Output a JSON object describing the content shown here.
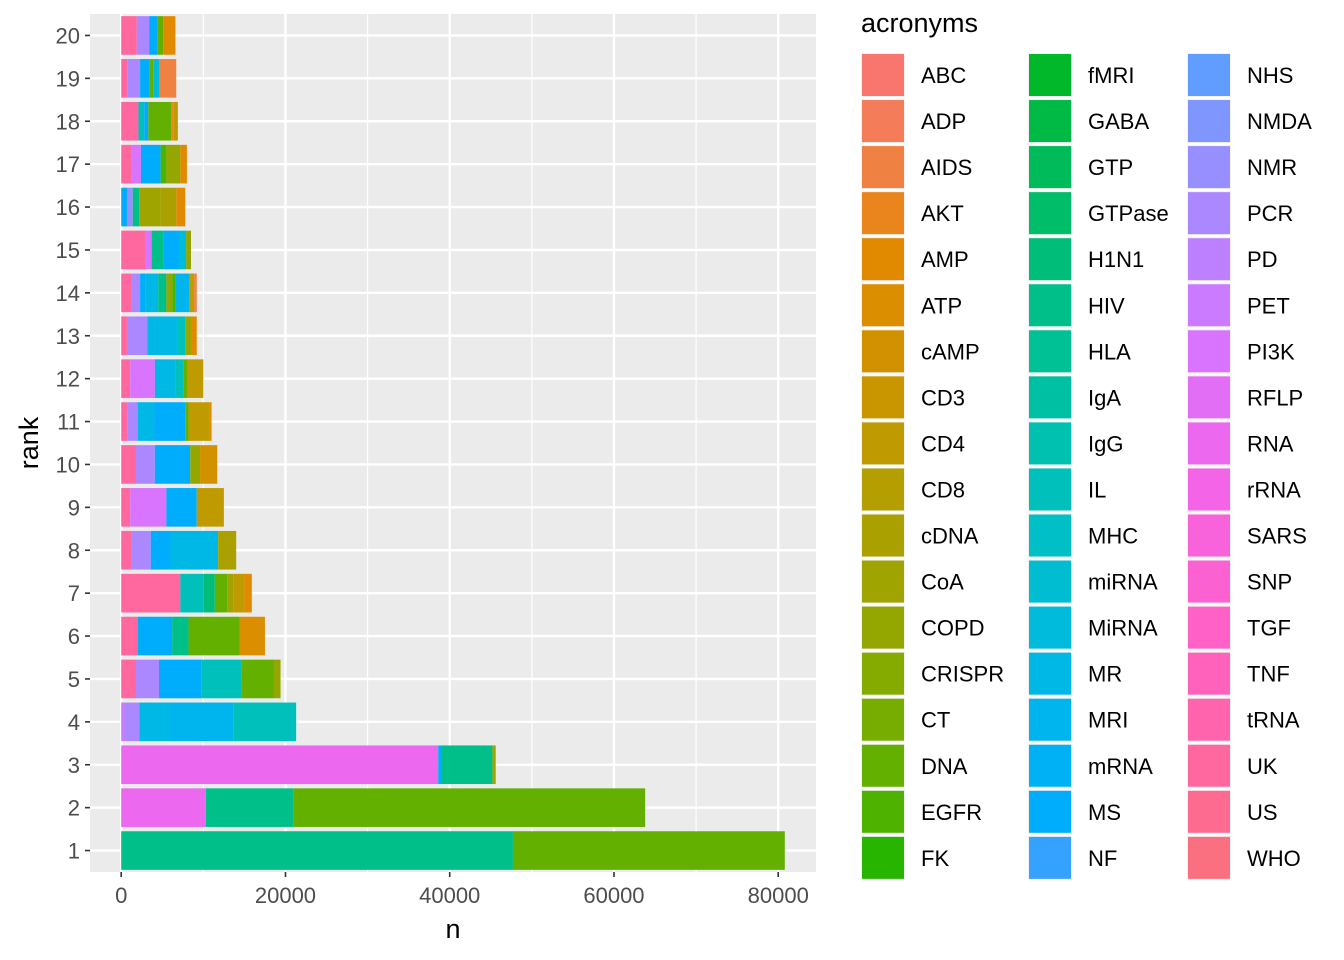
{
  "chart_data": {
    "type": "bar",
    "orientation": "horizontal",
    "stacked": true,
    "title": "",
    "xlabel": "n",
    "ylabel": "rank",
    "xlim": [
      -3800,
      84600
    ],
    "xticks": [
      0,
      20000,
      40000,
      60000,
      80000
    ],
    "xtick_labels": [
      "0",
      "20000",
      "40000",
      "60000",
      "80000"
    ],
    "categories": [
      "1",
      "2",
      "3",
      "4",
      "5",
      "6",
      "7",
      "8",
      "9",
      "10",
      "11",
      "12",
      "13",
      "14",
      "15",
      "16",
      "17",
      "18",
      "19",
      "20"
    ],
    "grid": true,
    "legend": {
      "title": "acronyms",
      "position": "right",
      "columns": 3,
      "items": [
        {
          "name": "ABC",
          "color": "#F8766D"
        },
        {
          "name": "ADP",
          "color": "#F47C59"
        },
        {
          "name": "AIDS",
          "color": "#EF8142"
        },
        {
          "name": "AKT",
          "color": "#E9851C"
        },
        {
          "name": "AMP",
          "color": "#E18A00"
        },
        {
          "name": "ATP",
          "color": "#DA8E00"
        },
        {
          "name": "cAMP",
          "color": "#D29200"
        },
        {
          "name": "CD3",
          "color": "#C99600"
        },
        {
          "name": "CD4",
          "color": "#BF9A00"
        },
        {
          "name": "CD8",
          "color": "#B59E00"
        },
        {
          "name": "cDNA",
          "color": "#AAA100"
        },
        {
          "name": "CoA",
          "color": "#9FA400"
        },
        {
          "name": "COPD",
          "color": "#93A700"
        },
        {
          "name": "CRISPR",
          "color": "#85AA00"
        },
        {
          "name": "CT",
          "color": "#76AD00"
        },
        {
          "name": "DNA",
          "color": "#64B000"
        },
        {
          "name": "EGFR",
          "color": "#4DB300"
        },
        {
          "name": "FK",
          "color": "#27B500"
        },
        {
          "name": "fMRI",
          "color": "#00B82A"
        },
        {
          "name": "GABA",
          "color": "#00BA45"
        },
        {
          "name": "GTP",
          "color": "#00BB59"
        },
        {
          "name": "GTPase",
          "color": "#00BD6A"
        },
        {
          "name": "H1N1",
          "color": "#00BE7A"
        },
        {
          "name": "HIV",
          "color": "#00BF88"
        },
        {
          "name": "HLA",
          "color": "#00C096"
        },
        {
          "name": "IgA",
          "color": "#00C0A3"
        },
        {
          "name": "IgG",
          "color": "#00C0AF"
        },
        {
          "name": "IL",
          "color": "#00C0BB"
        },
        {
          "name": "MHC",
          "color": "#00BFC6"
        },
        {
          "name": "miRNA",
          "color": "#00BDD1"
        },
        {
          "name": "MiRNA",
          "color": "#00BBDB"
        },
        {
          "name": "MR",
          "color": "#00B8E5"
        },
        {
          "name": "MRI",
          "color": "#00B5EE"
        },
        {
          "name": "mRNA",
          "color": "#00B1F6"
        },
        {
          "name": "MS",
          "color": "#00ACFC"
        },
        {
          "name": "NF",
          "color": "#35A2FF"
        },
        {
          "name": "NHS",
          "color": "#619CFF"
        },
        {
          "name": "NMDA",
          "color": "#7F96FF"
        },
        {
          "name": "NMR",
          "color": "#978FFF"
        },
        {
          "name": "PCR",
          "color": "#AB88FF"
        },
        {
          "name": "PD",
          "color": "#BD81FF"
        },
        {
          "name": "PET",
          "color": "#CB7BFF"
        },
        {
          "name": "PI3K",
          "color": "#D874FD"
        },
        {
          "name": "RFLP",
          "color": "#E36EF6"
        },
        {
          "name": "RNA",
          "color": "#EC69EF"
        },
        {
          "name": "rRNA",
          "color": "#F365E6"
        },
        {
          "name": "SARS",
          "color": "#F863DC"
        },
        {
          "name": "SNP",
          "color": "#FC61D2"
        },
        {
          "name": "TGF",
          "color": "#FF61C6"
        },
        {
          "name": "TNF",
          "color": "#FF62BA"
        },
        {
          "name": "tRNA",
          "color": "#FF64AD"
        },
        {
          "name": "UK",
          "color": "#FF679F"
        },
        {
          "name": "US",
          "color": "#FE6B90"
        },
        {
          "name": "WHO",
          "color": "#FB7080"
        }
      ]
    },
    "bars": [
      {
        "rank": "1",
        "segments": [
          [
            "HIV",
            47700
          ],
          [
            "DNA",
            33100
          ]
        ]
      },
      {
        "rank": "2",
        "segments": [
          [
            "RNA",
            10300
          ],
          [
            "HIV",
            10700
          ],
          [
            "DNA",
            42800
          ]
        ]
      },
      {
        "rank": "3",
        "segments": [
          [
            "RNA",
            38600
          ],
          [
            "MS",
            400
          ],
          [
            "HIV",
            6200
          ],
          [
            "CoA",
            400
          ]
        ]
      },
      {
        "rank": "4",
        "segments": [
          [
            "PET",
            400
          ],
          [
            "PCR",
            1800
          ],
          [
            "MR",
            3800
          ],
          [
            "MRI",
            7700
          ],
          [
            "IL",
            7600
          ]
        ]
      },
      {
        "rank": "5",
        "segments": [
          [
            "UK",
            1800
          ],
          [
            "PCR",
            2800
          ],
          [
            "MS",
            5200
          ],
          [
            "IL",
            4800
          ],
          [
            "DNA",
            4000
          ],
          [
            "COPD",
            800
          ]
        ]
      },
      {
        "rank": "6",
        "segments": [
          [
            "UK",
            2000
          ],
          [
            "MS",
            4200
          ],
          [
            "HIV",
            2000
          ],
          [
            "DNA",
            6200
          ],
          [
            "ATP",
            3100
          ]
        ]
      },
      {
        "rank": "7",
        "segments": [
          [
            "UK",
            7200
          ],
          [
            "IL",
            2800
          ],
          [
            "H1N1",
            1400
          ],
          [
            "DNA",
            1500
          ],
          [
            "CoA",
            800
          ],
          [
            "CD4",
            1300
          ],
          [
            "AMP",
            900
          ]
        ]
      },
      {
        "rank": "8",
        "segments": [
          [
            "UK",
            1200
          ],
          [
            "PCR",
            2400
          ],
          [
            "MS",
            2400
          ],
          [
            "MR",
            5800
          ],
          [
            "cDNA",
            2200
          ]
        ]
      },
      {
        "rank": "9",
        "segments": [
          [
            "UK",
            1100
          ],
          [
            "PI3K",
            4400
          ],
          [
            "MS",
            3700
          ],
          [
            "CD4",
            3300
          ]
        ]
      },
      {
        "rank": "10",
        "segments": [
          [
            "UK",
            1800
          ],
          [
            "PCR",
            2300
          ],
          [
            "MS",
            4300
          ],
          [
            "COPD",
            1200
          ],
          [
            "cAMP",
            2100
          ]
        ]
      },
      {
        "rank": "11",
        "segments": [
          [
            "UK",
            800
          ],
          [
            "PCR",
            1200
          ],
          [
            "MR",
            2000
          ],
          [
            "MS",
            3800
          ],
          [
            "DNA",
            400
          ],
          [
            "CD4",
            2500
          ],
          [
            "AMP",
            300
          ]
        ]
      },
      {
        "rank": "12",
        "segments": [
          [
            "UK",
            1100
          ],
          [
            "PI3K",
            3000
          ],
          [
            "MR",
            2500
          ],
          [
            "IL",
            1000
          ],
          [
            "DNA",
            500
          ],
          [
            "CD4",
            1900
          ]
        ]
      },
      {
        "rank": "13",
        "segments": [
          [
            "UK",
            700
          ],
          [
            "PCR",
            2500
          ],
          [
            "MR",
            3600
          ],
          [
            "IL",
            1000
          ],
          [
            "CoA",
            700
          ],
          [
            "AMP",
            700
          ]
        ]
      },
      {
        "rank": "14",
        "segments": [
          [
            "UK",
            1300
          ],
          [
            "PCR",
            1000
          ],
          [
            "MS",
            700
          ],
          [
            "MR",
            1500
          ],
          [
            "HIV",
            1000
          ],
          [
            "COPD",
            700
          ],
          [
            "EGFR",
            400
          ],
          [
            "MRI",
            1700
          ],
          [
            "CD4",
            600
          ],
          [
            "AIDS",
            300
          ]
        ]
      },
      {
        "rank": "15",
        "segments": [
          [
            "UK",
            2900
          ],
          [
            "PI3K",
            800
          ],
          [
            "HIV",
            1400
          ],
          [
            "MS",
            2000
          ],
          [
            "MiRNA",
            800
          ],
          [
            "COPD",
            600
          ]
        ]
      },
      {
        "rank": "16",
        "segments": [
          [
            "MS",
            700
          ],
          [
            "NMR",
            700
          ],
          [
            "HIV",
            800
          ],
          [
            "CoA",
            2600
          ],
          [
            "cDNA",
            1900
          ],
          [
            "AMP",
            1100
          ]
        ]
      },
      {
        "rank": "17",
        "segments": [
          [
            "UK",
            1200
          ],
          [
            "PI3K",
            1200
          ],
          [
            "MS",
            2400
          ],
          [
            "EGFR",
            700
          ],
          [
            "COPD",
            1700
          ],
          [
            "AMP",
            800
          ]
        ]
      },
      {
        "rank": "18",
        "segments": [
          [
            "UK",
            2100
          ],
          [
            "IL",
            700
          ],
          [
            "MS",
            500
          ],
          [
            "DNA",
            2800
          ],
          [
            "AKT",
            300
          ],
          [
            "CD4",
            500
          ]
        ]
      },
      {
        "rank": "19",
        "segments": [
          [
            "UK",
            800
          ],
          [
            "PCR",
            1500
          ],
          [
            "MS",
            1100
          ],
          [
            "DNA",
            500
          ],
          [
            "MiRNA",
            700
          ],
          [
            "AIDS",
            2100
          ]
        ]
      },
      {
        "rank": "20",
        "segments": [
          [
            "UK",
            1900
          ],
          [
            "PCR",
            1500
          ],
          [
            "MS",
            1000
          ],
          [
            "DNA",
            700
          ],
          [
            "AMP",
            1500
          ]
        ]
      }
    ]
  }
}
